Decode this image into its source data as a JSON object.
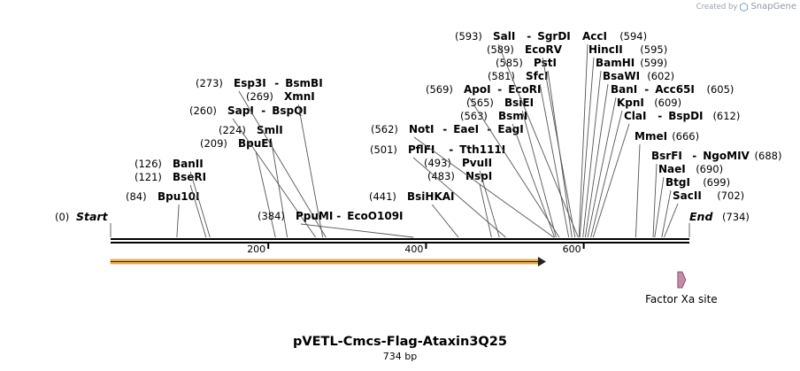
{
  "credit": {
    "prefix": "Created by",
    "brand": "SnapGene"
  },
  "map": {
    "name": "pVETL-Cmcs-Flag-Ataxin3Q25",
    "length_label": "734 bp",
    "length": 734,
    "start_label": "Start",
    "start_pos": "(0)",
    "end_label": "End",
    "end_pos": "(734)",
    "ticks": [
      200,
      400,
      600
    ],
    "orf": {
      "start": 0,
      "end": 551,
      "color": "#f6b24a"
    },
    "feature": {
      "name": "Factor Xa site",
      "position": 726,
      "color": "#c48aa8"
    },
    "sites": [
      {
        "pos": 84,
        "names": [
          "Bpu10I"
        ]
      },
      {
        "pos": 121,
        "names": [
          "BseRI"
        ]
      },
      {
        "pos": 126,
        "names": [
          "BanII"
        ]
      },
      {
        "pos": 209,
        "names": [
          "BpuEI"
        ]
      },
      {
        "pos": 224,
        "names": [
          "SmlI"
        ]
      },
      {
        "pos": 260,
        "names": [
          "SapI",
          "BspQI"
        ]
      },
      {
        "pos": 269,
        "names": [
          "XmnI"
        ]
      },
      {
        "pos": 273,
        "names": [
          "Esp3I",
          "BsmBI"
        ]
      },
      {
        "pos": 384,
        "names": [
          "PpuMI",
          "EcoO109I"
        ]
      },
      {
        "pos": 441,
        "names": [
          "BsiHKAI"
        ]
      },
      {
        "pos": 483,
        "names": [
          "NspI"
        ]
      },
      {
        "pos": 493,
        "names": [
          "PvuII"
        ]
      },
      {
        "pos": 501,
        "names": [
          "PflFI",
          "Tth111I"
        ]
      },
      {
        "pos": 562,
        "names": [
          "NotI",
          "EaeI",
          "EagI"
        ]
      },
      {
        "pos": 563,
        "names": [
          "BsmI"
        ]
      },
      {
        "pos": 565,
        "names": [
          "BsiEI"
        ]
      },
      {
        "pos": 569,
        "names": [
          "ApoI",
          "EcoRI"
        ]
      },
      {
        "pos": 581,
        "names": [
          "SfcI"
        ]
      },
      {
        "pos": 585,
        "names": [
          "PstI"
        ]
      },
      {
        "pos": 589,
        "names": [
          "EcoRV"
        ]
      },
      {
        "pos": 593,
        "names": [
          "SalI",
          "SgrDI"
        ]
      },
      {
        "pos": 594,
        "names": [
          "AccI"
        ]
      },
      {
        "pos": 595,
        "names": [
          "HincII"
        ]
      },
      {
        "pos": 599,
        "names": [
          "BamHI"
        ]
      },
      {
        "pos": 602,
        "names": [
          "BsaWI"
        ]
      },
      {
        "pos": 605,
        "names": [
          "BanI",
          "Acc65I"
        ]
      },
      {
        "pos": 609,
        "names": [
          "KpnI"
        ]
      },
      {
        "pos": 612,
        "names": [
          "ClaI",
          "BspDI"
        ]
      },
      {
        "pos": 666,
        "names": [
          "MmeI"
        ]
      },
      {
        "pos": 688,
        "names": [
          "BsrFI",
          "NgoMIV"
        ]
      },
      {
        "pos": 690,
        "names": [
          "NaeI"
        ]
      },
      {
        "pos": 699,
        "names": [
          "BtgI"
        ]
      },
      {
        "pos": 702,
        "names": [
          "SacII"
        ]
      }
    ]
  }
}
